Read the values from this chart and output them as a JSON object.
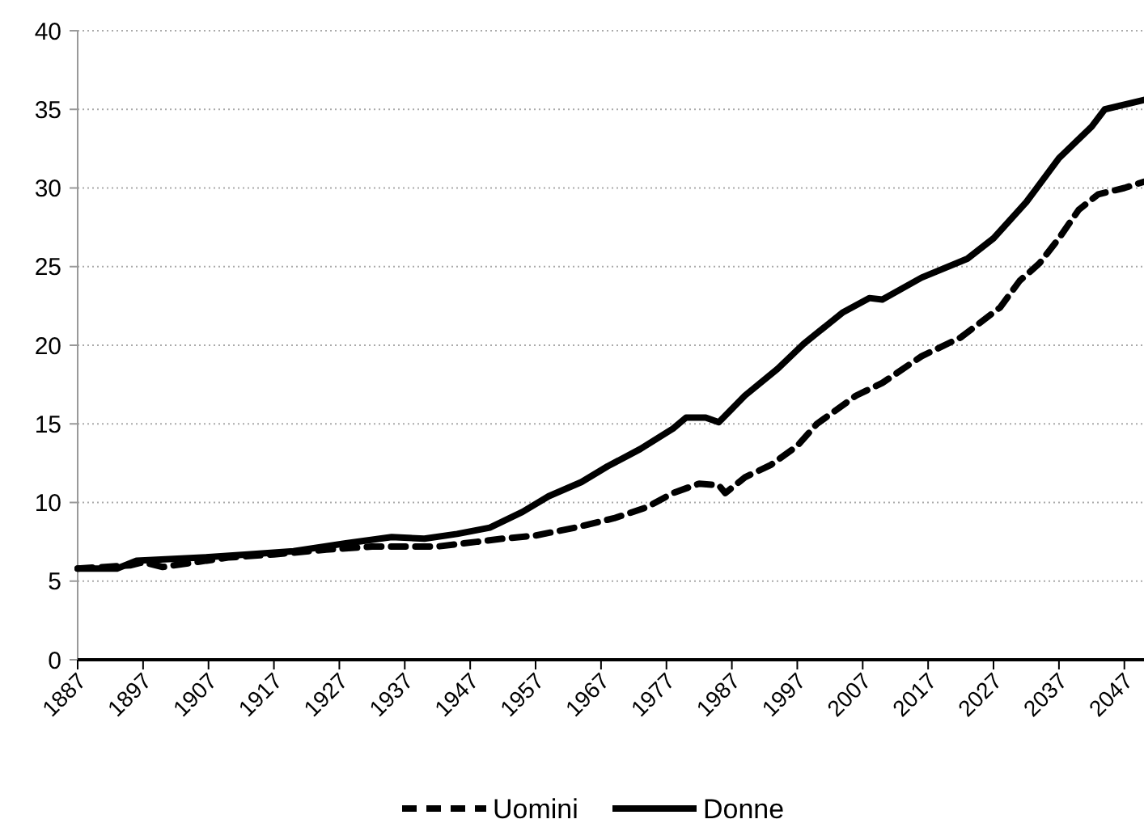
{
  "chart_data": {
    "type": "line",
    "xlim": [
      1887,
      2050
    ],
    "xticks": [
      1887,
      1897,
      1907,
      1917,
      1927,
      1937,
      1947,
      1957,
      1967,
      1977,
      1987,
      1997,
      2007,
      2017,
      2027,
      2037,
      2047
    ],
    "ylim": [
      0,
      40
    ],
    "yticks": [
      0,
      5,
      10,
      15,
      20,
      25,
      30,
      35,
      40
    ],
    "grid": "y",
    "legend": "bottom",
    "marker": "none",
    "series": [
      {
        "name": "Uomini",
        "color": "#000000",
        "line_style": "dashed",
        "x": [
          1887,
          1895,
          1897,
          1900,
          1905,
          1910,
          1917,
          1925,
          1932,
          1942,
          1948,
          1952,
          1957,
          1963,
          1969,
          1974,
          1978,
          1982,
          1985,
          1986,
          1989,
          1993,
          1997,
          2000,
          2006,
          2010,
          2016,
          2022,
          2028,
          2031,
          2034,
          2037,
          2040,
          2043,
          2047,
          2050
        ],
        "values": [
          5.8,
          6.0,
          6.2,
          5.9,
          6.2,
          6.5,
          6.7,
          7.0,
          7.2,
          7.2,
          7.5,
          7.7,
          7.9,
          8.4,
          9.0,
          9.7,
          10.6,
          11.2,
          11.1,
          10.6,
          11.6,
          12.4,
          13.6,
          15.0,
          16.8,
          17.6,
          19.3,
          20.5,
          22.4,
          24.1,
          25.2,
          26.8,
          28.6,
          29.6,
          30.0,
          30.4
        ]
      },
      {
        "name": "Donne",
        "color": "#000000",
        "line_style": "solid",
        "x": [
          1887,
          1893,
          1896,
          1906,
          1913,
          1920,
          1928,
          1935,
          1940,
          1945,
          1950,
          1955,
          1959,
          1964,
          1968,
          1973,
          1978,
          1980,
          1983,
          1985,
          1989,
          1994,
          1998,
          2004,
          2008,
          2010,
          2016,
          2023,
          2027,
          2032,
          2037,
          2042,
          2044,
          2050
        ],
        "values": [
          5.8,
          5.8,
          6.3,
          6.5,
          6.7,
          6.9,
          7.4,
          7.8,
          7.7,
          8.0,
          8.4,
          9.4,
          10.4,
          11.3,
          12.3,
          13.4,
          14.7,
          15.4,
          15.4,
          15.1,
          16.8,
          18.5,
          20.1,
          22.1,
          23.0,
          22.9,
          24.3,
          25.5,
          26.8,
          29.1,
          31.9,
          33.9,
          35.0,
          35.6
        ]
      }
    ]
  }
}
